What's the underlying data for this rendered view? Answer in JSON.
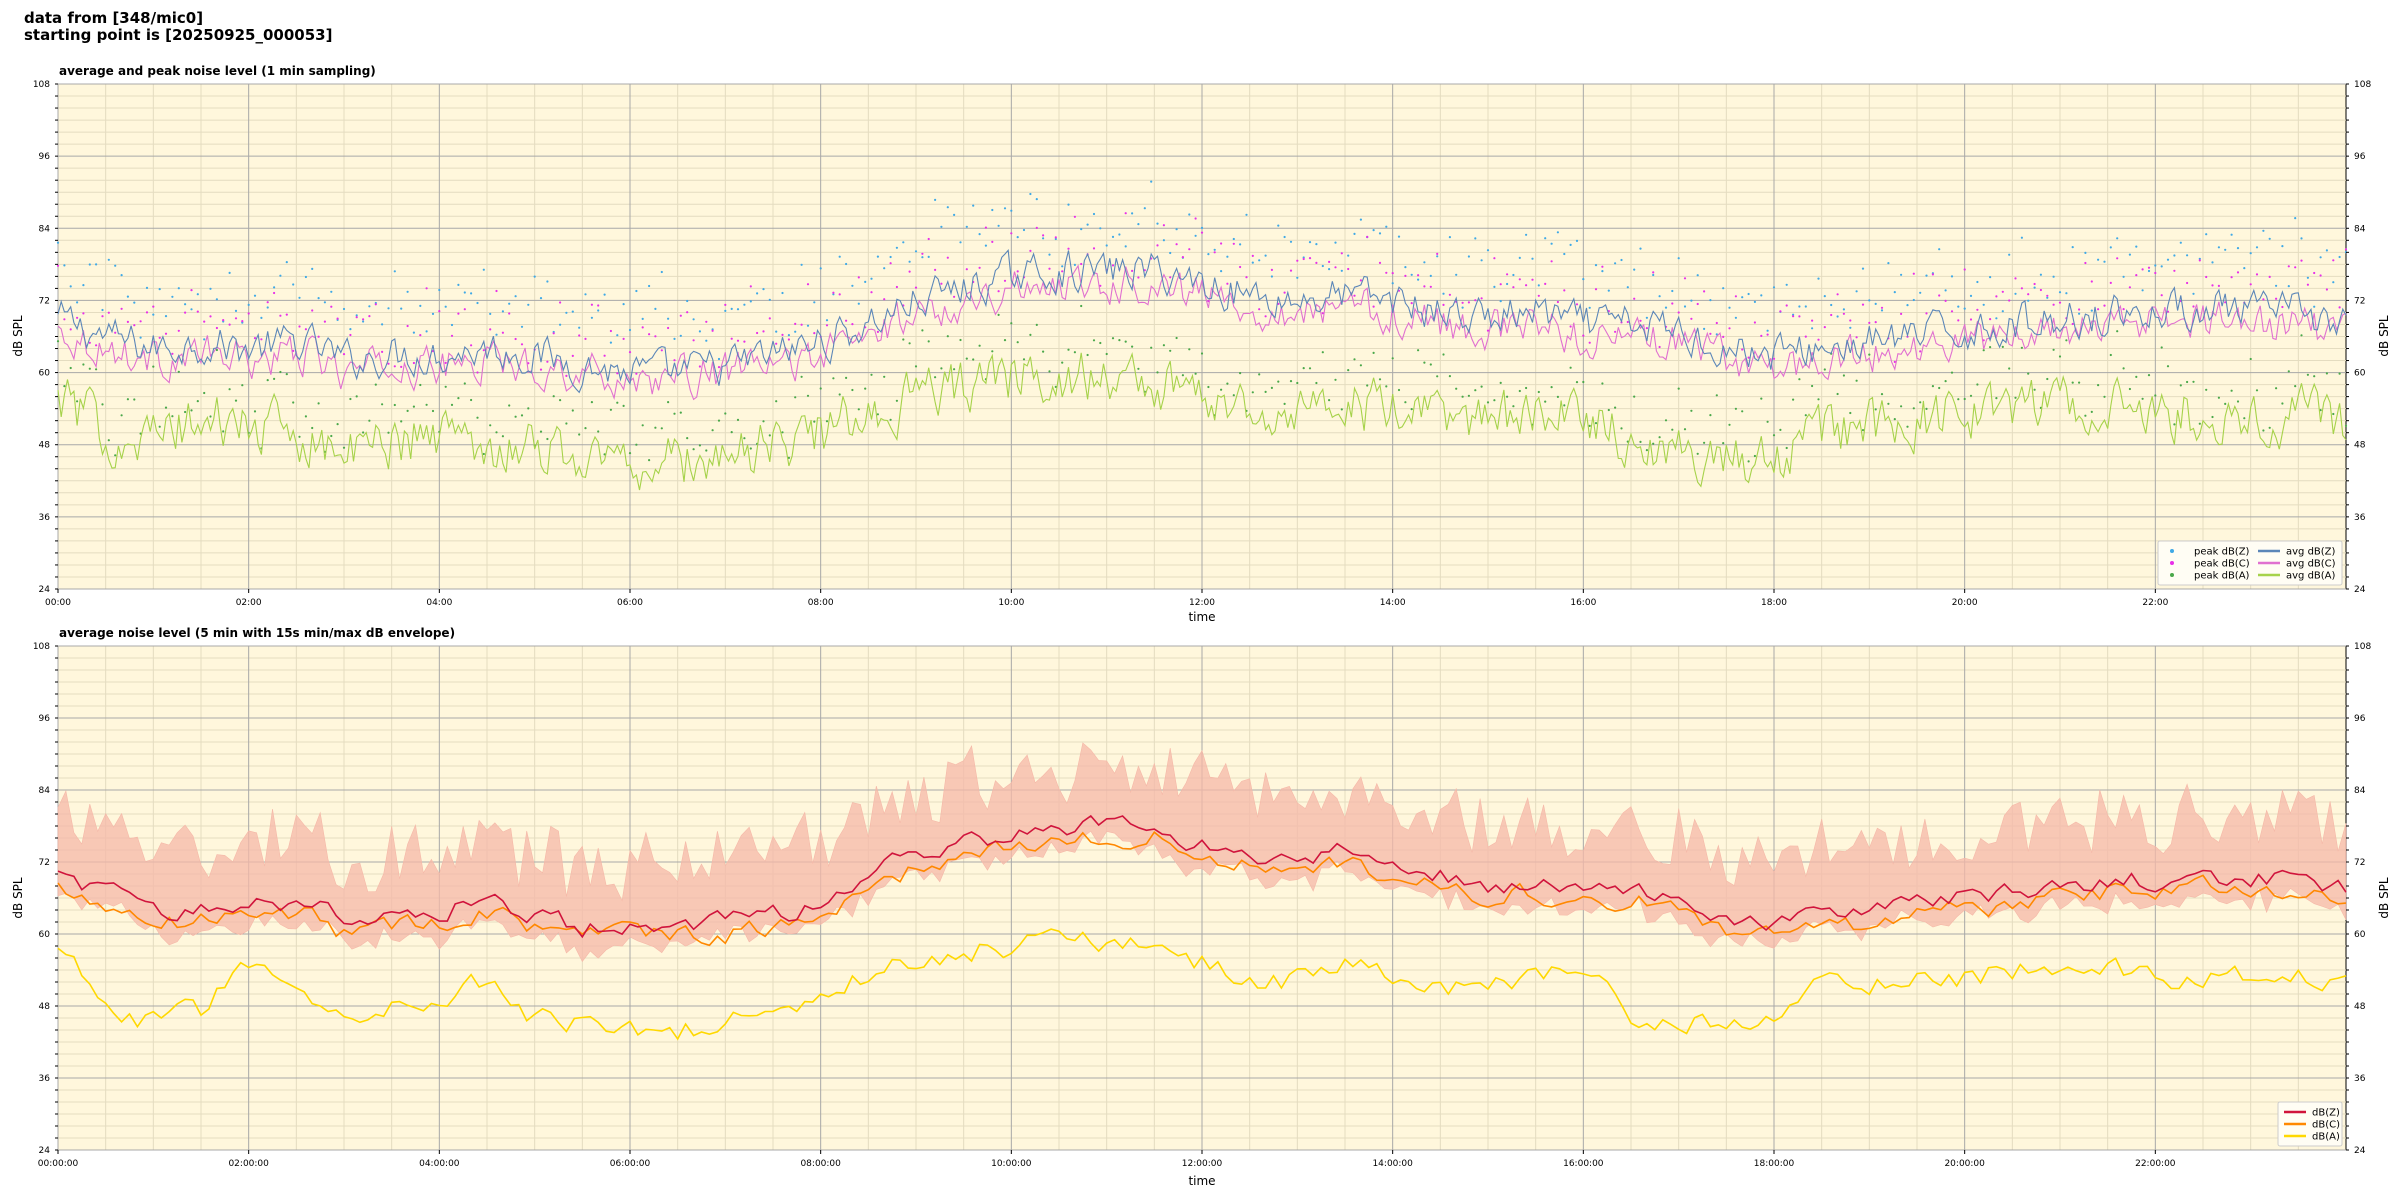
{
  "header": {
    "line1": "data from [348/mic0]",
    "line2": "starting point is [20250925_000053]"
  },
  "colors": {
    "background": "#fff7dc",
    "grid_major": "#a8a8a8",
    "grid_minor": "#e4dcc0",
    "peak_z": "#3fa9e6",
    "peak_c": "#e830e8",
    "peak_a": "#4aa84a",
    "avg_z": "#5b86b8",
    "avg_c": "#e070d0",
    "avg_a": "#a6d24a",
    "dbz": "#d0143c",
    "dbc": "#ff8800",
    "dba": "#ffd800",
    "envelope": "#f5b8a8"
  },
  "chart_data": [
    {
      "type": "line",
      "title": "average and peak noise level (1 min sampling)",
      "xlabel": "time",
      "ylabel": "dB SPL",
      "xlim_hours": [
        0,
        24
      ],
      "ylim": [
        24,
        108
      ],
      "yticks": [
        "24",
        "36",
        "48",
        "60",
        "72",
        "84",
        "96",
        "108"
      ],
      "xticks": [
        "00:00",
        "02:00",
        "04:00",
        "06:00",
        "08:00",
        "10:00",
        "12:00",
        "14:00",
        "16:00",
        "18:00",
        "20:00",
        "22:00"
      ],
      "grid": true,
      "legend_position": "bottom-right",
      "legend": [
        "peak dB(Z)",
        "peak dB(C)",
        "peak dB(A)",
        "avg dB(Z)",
        "avg dB(C)",
        "avg dB(A)"
      ],
      "baseline_hours": [
        0,
        0.5,
        1,
        1.5,
        2,
        2.5,
        2.75,
        3,
        3.5,
        4,
        4.5,
        5,
        5.5,
        6,
        6.5,
        7,
        7.5,
        8,
        8.5,
        9,
        9.5,
        10,
        10.5,
        11,
        11.5,
        12,
        12.5,
        13,
        13.5,
        14,
        14.5,
        15,
        15.5,
        16,
        16.5,
        17,
        17.5,
        18,
        18.5,
        19,
        19.5,
        20,
        20.5,
        21,
        21.5,
        22,
        22.5,
        23,
        23.5,
        24
      ],
      "series": [
        {
          "name": "avg dB(Z)",
          "style": "line",
          "color_key": "avg_z",
          "amp": 3.5,
          "values": [
            69,
            66,
            64,
            65,
            64,
            65,
            64,
            62,
            63,
            63,
            64,
            63,
            61,
            60,
            60,
            61,
            63,
            65,
            68,
            72,
            74,
            76,
            77,
            77,
            77,
            75,
            73,
            72,
            73,
            72,
            70,
            69,
            70,
            68,
            68,
            67,
            64,
            63,
            64,
            65,
            66,
            67,
            68,
            69,
            70,
            70,
            71,
            70,
            70,
            68
          ]
        },
        {
          "name": "avg dB(C)",
          "style": "line",
          "color_key": "avg_c",
          "amp": 3.5,
          "values": [
            67,
            64,
            62,
            63,
            62,
            63,
            62,
            60,
            61,
            61,
            62,
            61,
            60,
            59,
            59,
            60,
            61,
            63,
            66,
            70,
            72,
            74,
            75,
            75,
            75,
            73,
            71,
            70,
            71,
            70,
            68,
            67,
            68,
            66,
            66,
            65,
            62,
            61,
            62,
            63,
            64,
            65,
            66,
            67,
            68,
            68,
            69,
            68,
            68,
            66
          ]
        },
        {
          "name": "avg dB(A)",
          "style": "line",
          "color_key": "avg_a",
          "amp": 5,
          "values": [
            56,
            50,
            49,
            52,
            51,
            50,
            49,
            46,
            49,
            50,
            48,
            48,
            46,
            45,
            45,
            46,
            48,
            50,
            53,
            56,
            58,
            59,
            60,
            59,
            58,
            56,
            55,
            53,
            55,
            53,
            52,
            53,
            52,
            53,
            49,
            47,
            45,
            46,
            50,
            51,
            52,
            53,
            54,
            55,
            54,
            53,
            53,
            53,
            53,
            52
          ]
        },
        {
          "name": "peak dB(Z)",
          "style": "points",
          "color_key": "peak_z",
          "offset": 6,
          "spread": 6,
          "base_series": 0
        },
        {
          "name": "peak dB(C)",
          "style": "points",
          "color_key": "peak_c",
          "offset": 4,
          "spread": 6,
          "base_series": 1
        },
        {
          "name": "peak dB(A)",
          "style": "points",
          "color_key": "peak_a",
          "offset": 3,
          "spread": 5,
          "base_series": 2
        }
      ]
    },
    {
      "type": "line",
      "title": "average noise level (5 min with 15s min/max dB envelope)",
      "xlabel": "time",
      "ylabel": "dB SPL",
      "xlim_hours": [
        0,
        24
      ],
      "ylim": [
        24,
        108
      ],
      "yticks": [
        "24",
        "36",
        "48",
        "60",
        "72",
        "84",
        "96",
        "108"
      ],
      "xticks": [
        "00:00:00",
        "02:00:00",
        "04:00:00",
        "06:00:00",
        "08:00:00",
        "10:00:00",
        "12:00:00",
        "14:00:00",
        "16:00:00",
        "18:00:00",
        "20:00:00",
        "22:00:00"
      ],
      "grid": true,
      "legend_position": "bottom-right",
      "legend": [
        "dB(Z)",
        "dB(C)",
        "dB(A)"
      ],
      "baseline_hours": [
        0,
        0.5,
        1,
        1.5,
        2,
        2.5,
        2.75,
        3,
        3.5,
        4,
        4.5,
        5,
        5.5,
        6,
        6.5,
        7,
        7.5,
        8,
        8.5,
        9,
        9.5,
        10,
        10.5,
        11,
        11.5,
        12,
        12.5,
        13,
        13.5,
        14,
        14.5,
        15,
        15.5,
        16,
        16.5,
        17,
        17.5,
        18,
        18.5,
        19,
        19.5,
        20,
        20.5,
        21,
        21.5,
        22,
        22.5,
        23,
        23.5,
        24
      ],
      "series": [
        {
          "name": "envelope",
          "style": "band",
          "color_key": "envelope",
          "base_series": 1,
          "low": 4,
          "high": 12
        },
        {
          "name": "dB(Z)",
          "style": "line",
          "color_key": "dbz",
          "amp": 1.8,
          "values": [
            70,
            67,
            64,
            64,
            66,
            65,
            65,
            62,
            63,
            64,
            66,
            63,
            61,
            61,
            61,
            62,
            63,
            65,
            70,
            73,
            75,
            77,
            78,
            78,
            78,
            75,
            73,
            72,
            74,
            72,
            70,
            68,
            69,
            67,
            68,
            66,
            63,
            61,
            63,
            64,
            65,
            66,
            67,
            68,
            69,
            69,
            70,
            69,
            69,
            68
          ]
        },
        {
          "name": "dB(C)",
          "style": "line",
          "color_key": "dbc",
          "amp": 1.8,
          "values": [
            68,
            65,
            62,
            62,
            64,
            63,
            63,
            60,
            61,
            62,
            64,
            61,
            60,
            60,
            60,
            60,
            61,
            63,
            68,
            71,
            73,
            75,
            76,
            76,
            76,
            73,
            71,
            70,
            72,
            70,
            68,
            66,
            67,
            65,
            66,
            64,
            61,
            59,
            61,
            62,
            63,
            64,
            65,
            66,
            67,
            67,
            68,
            67,
            67,
            66
          ]
        },
        {
          "name": "dB(A)",
          "style": "line",
          "color_key": "dba",
          "amp": 2.2,
          "values": [
            57,
            49,
            45,
            47,
            55,
            50,
            49,
            46,
            49,
            50,
            52,
            46,
            45,
            44,
            44,
            45,
            47,
            49,
            53,
            56,
            57,
            58,
            60,
            58,
            58,
            55,
            53,
            52,
            55,
            53,
            51,
            51,
            52,
            54,
            47,
            46,
            44,
            46,
            51,
            52,
            52,
            53,
            54,
            55,
            54,
            53,
            53,
            53,
            53,
            52
          ]
        }
      ]
    }
  ]
}
